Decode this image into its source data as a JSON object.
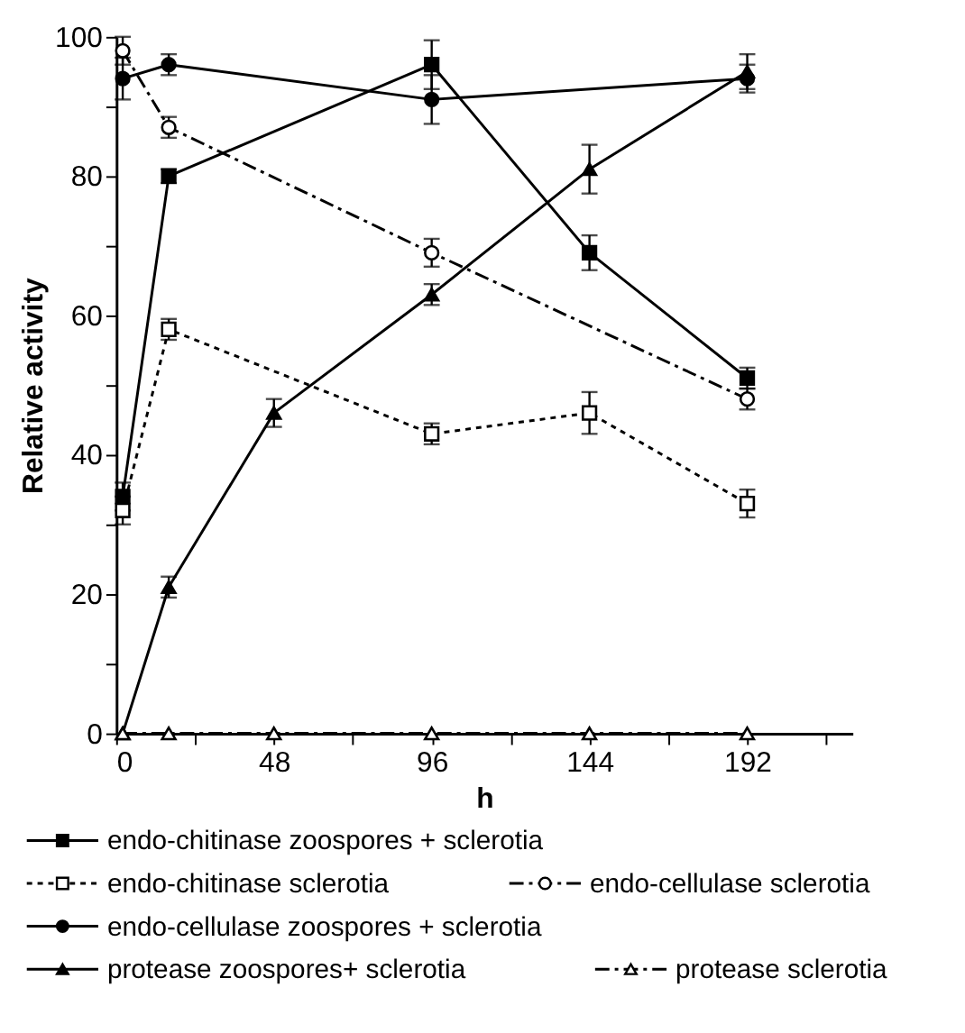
{
  "chart_data": {
    "type": "line",
    "xlabel": "h",
    "ylabel": "Relative activity",
    "xlim": [
      0,
      224
    ],
    "xticks": [
      0,
      {
        "value": 24,
        "label": null
      },
      48,
      {
        "value": 72,
        "label": null
      },
      96,
      {
        "value": 120,
        "label": null
      },
      144,
      {
        "value": 168,
        "label": null
      },
      192,
      {
        "value": 216,
        "label": null
      }
    ],
    "ylim": [
      0,
      100
    ],
    "yticks": [
      0,
      {
        "value": 10,
        "label": null
      },
      20,
      {
        "value": 30,
        "label": null
      },
      40,
      {
        "value": 50,
        "label": null
      },
      60,
      {
        "value": 70,
        "label": null
      },
      80,
      {
        "value": 90,
        "label": null
      },
      100
    ],
    "grid": false,
    "legend": "bottom",
    "series": [
      {
        "name": "endo-chitinase zoospores + sclerotia",
        "color": "#000000",
        "marker": "square",
        "line_style": "solid",
        "x": [
          2,
          16,
          96,
          144,
          192
        ],
        "values": [
          34,
          80,
          96,
          69,
          51
        ],
        "errors": [
          2,
          1,
          3.5,
          2.5,
          1.5
        ]
      },
      {
        "name": "endo-chitinase sclerotia",
        "color": "#000000",
        "marker": "square",
        "line_style": "dashed",
        "x": [
          2,
          16,
          96,
          144,
          192
        ],
        "values": [
          32,
          58,
          43,
          46,
          33
        ],
        "errors": [
          2,
          1.5,
          1.5,
          3,
          2
        ]
      },
      {
        "name": "endo-cellulase sclerotia",
        "color": "#000000",
        "marker": "circle",
        "line_style": "dashdot",
        "x": [
          2,
          16,
          96,
          192
        ],
        "values": [
          98,
          87,
          69,
          48
        ],
        "errors": [
          2,
          1.5,
          2,
          1.5
        ]
      },
      {
        "name": "endo-cellulase zoospores + sclerotia",
        "color": "#000000",
        "marker": "circle",
        "line_style": "solid",
        "x": [
          2,
          16,
          96,
          192
        ],
        "values": [
          94,
          96,
          91,
          94
        ],
        "errors": [
          3,
          1.5,
          3.5,
          2
        ]
      },
      {
        "name": "protease zoospores+ sclerotia",
        "color": "#000000",
        "marker": "triangle",
        "line_style": "solid",
        "x": [
          2,
          16,
          48,
          96,
          144,
          192
        ],
        "values": [
          0,
          21,
          46,
          63,
          81,
          95
        ],
        "errors": [
          null,
          1.5,
          2,
          1.5,
          3.5,
          2.5
        ]
      },
      {
        "name": "protease sclerotia",
        "color": "#000000",
        "marker": "triangle",
        "line_style": "dashdot",
        "x": [
          2,
          16,
          48,
          96,
          144,
          192
        ],
        "values": [
          0,
          0,
          0,
          0,
          0,
          0
        ]
      }
    ]
  }
}
